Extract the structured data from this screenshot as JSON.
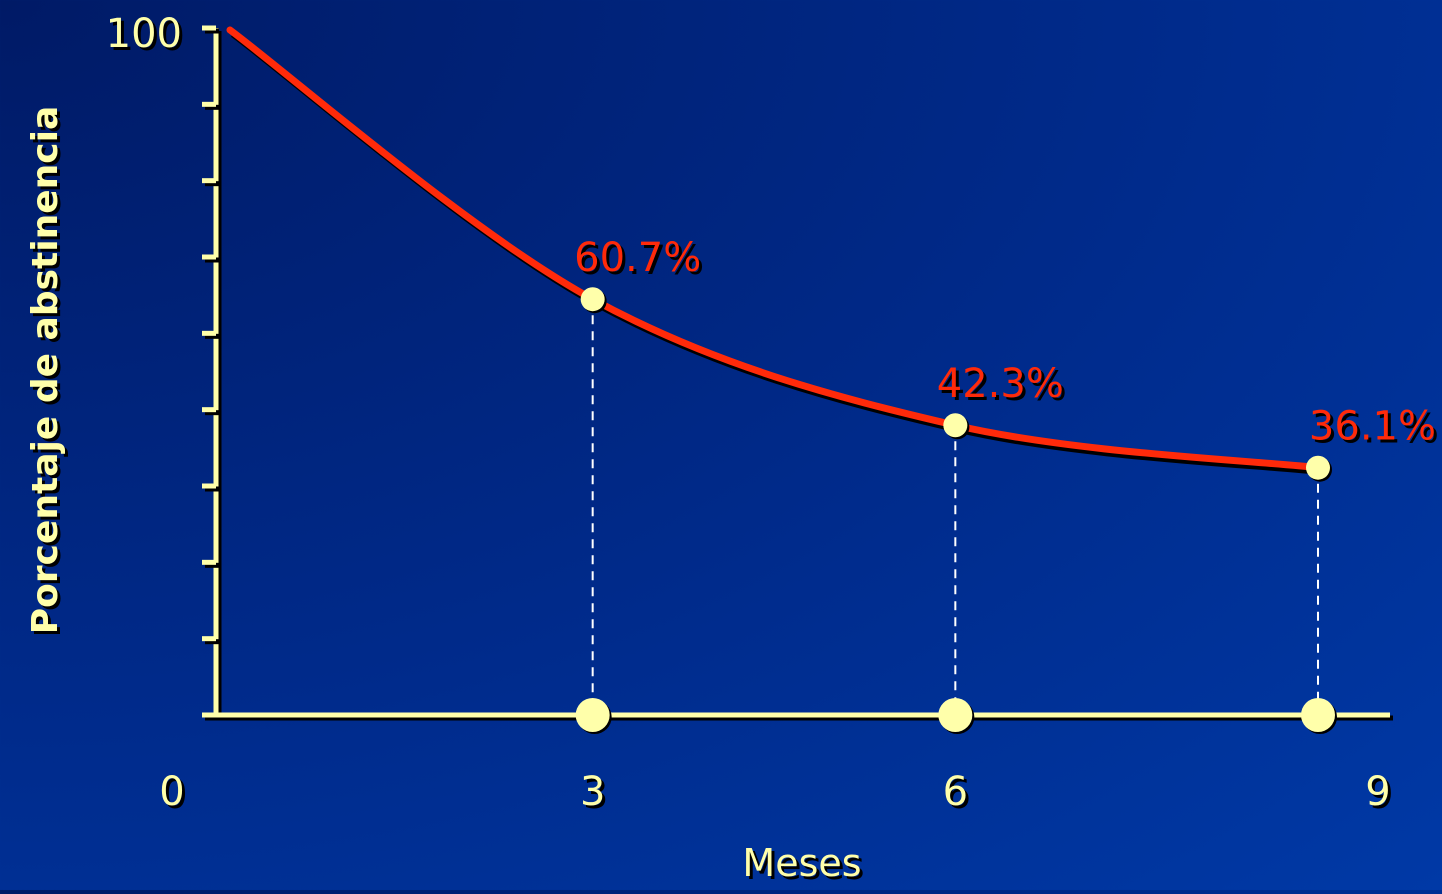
{
  "chart_data": {
    "type": "line",
    "title": "",
    "xlabel": "Meses",
    "ylabel": "Porcentaje de abstinencia",
    "x_ticks": [
      "0",
      "3",
      "6",
      "9"
    ],
    "y_tick_labels": [
      "100"
    ],
    "ylim": [
      0,
      100
    ],
    "xlim": [
      0,
      9
    ],
    "grid": false,
    "series": [
      {
        "x": [
          0,
          3,
          6,
          9
        ],
        "y": [
          100,
          60.7,
          42.3,
          36.1
        ],
        "color": "#ff2a0a"
      }
    ],
    "data_labels": [
      {
        "x": 3,
        "y": 60.7,
        "text": "60.7%"
      },
      {
        "x": 6,
        "y": 42.3,
        "text": "42.3%"
      },
      {
        "x": 9,
        "y": 36.1,
        "text": "36.1%"
      }
    ],
    "y_minor_tick_count": 10
  },
  "colors": {
    "axis": "#ffffaa",
    "curve": "#ff2a0a",
    "marker": "#ffffaa",
    "background": "#002a8a"
  }
}
